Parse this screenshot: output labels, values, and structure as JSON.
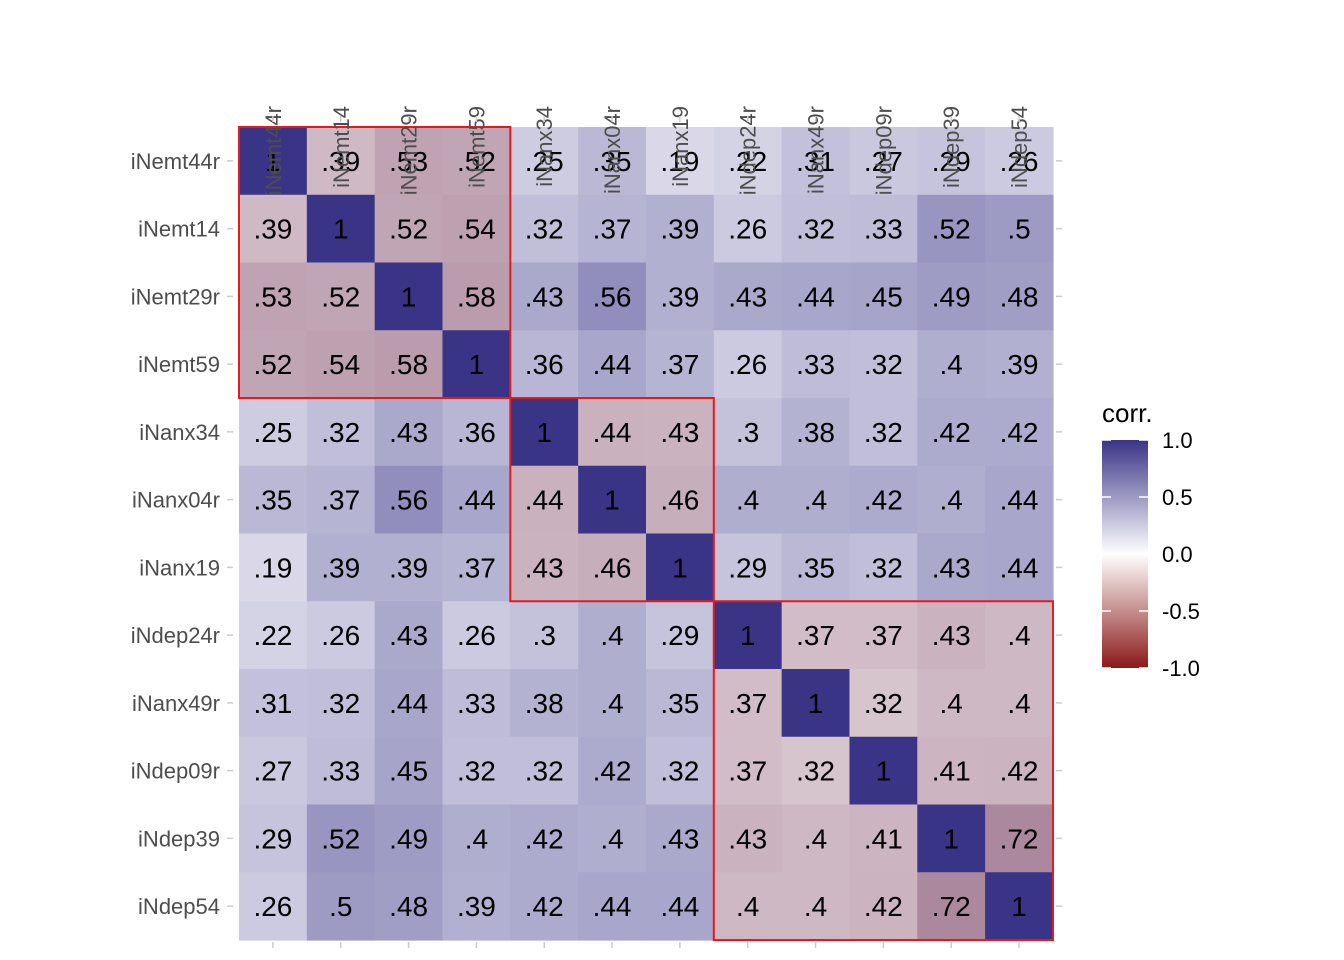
{
  "chart_data": {
    "type": "heatmap",
    "title": "",
    "xlabel": "",
    "ylabel": "",
    "variables": [
      "iNemt44r",
      "iNemt14",
      "iNemt29r",
      "iNemt59",
      "iNanx34",
      "iNanx04r",
      "iNanx19",
      "iNdep24r",
      "iNanx49r",
      "iNdep09r",
      "iNdep39",
      "iNdep54"
    ],
    "values": [
      [
        1,
        0.39,
        0.53,
        0.52,
        0.25,
        0.35,
        0.19,
        0.22,
        0.31,
        0.27,
        0.29,
        0.26
      ],
      [
        0.39,
        1,
        0.52,
        0.54,
        0.32,
        0.37,
        0.39,
        0.26,
        0.32,
        0.33,
        0.52,
        0.5
      ],
      [
        0.53,
        0.52,
        1,
        0.58,
        0.43,
        0.56,
        0.39,
        0.43,
        0.44,
        0.45,
        0.49,
        0.48
      ],
      [
        0.52,
        0.54,
        0.58,
        1,
        0.36,
        0.44,
        0.37,
        0.26,
        0.33,
        0.32,
        0.4,
        0.39
      ],
      [
        0.25,
        0.32,
        0.43,
        0.36,
        1,
        0.44,
        0.43,
        0.3,
        0.38,
        0.32,
        0.42,
        0.42
      ],
      [
        0.35,
        0.37,
        0.56,
        0.44,
        0.44,
        1,
        0.46,
        0.4,
        0.4,
        0.42,
        0.4,
        0.44
      ],
      [
        0.19,
        0.39,
        0.39,
        0.37,
        0.43,
        0.46,
        1,
        0.29,
        0.35,
        0.32,
        0.43,
        0.44
      ],
      [
        0.22,
        0.26,
        0.43,
        0.26,
        0.3,
        0.4,
        0.29,
        1,
        0.37,
        0.37,
        0.43,
        0.4
      ],
      [
        0.31,
        0.32,
        0.44,
        0.33,
        0.38,
        0.4,
        0.35,
        0.37,
        1,
        0.32,
        0.4,
        0.4
      ],
      [
        0.27,
        0.33,
        0.45,
        0.32,
        0.32,
        0.42,
        0.32,
        0.37,
        0.32,
        1,
        0.41,
        0.42
      ],
      [
        0.29,
        0.52,
        0.49,
        0.4,
        0.42,
        0.4,
        0.43,
        0.43,
        0.4,
        0.41,
        1,
        0.72
      ],
      [
        0.26,
        0.5,
        0.48,
        0.39,
        0.42,
        0.44,
        0.44,
        0.4,
        0.4,
        0.42,
        0.72,
        1
      ]
    ],
    "labels": [
      [
        "1",
        ".39",
        ".53",
        ".52",
        ".25",
        ".35",
        ".19",
        ".22",
        ".31",
        ".27",
        ".29",
        ".26"
      ],
      [
        ".39",
        "1",
        ".52",
        ".54",
        ".32",
        ".37",
        ".39",
        ".26",
        ".32",
        ".33",
        ".52",
        ".5"
      ],
      [
        ".53",
        ".52",
        "1",
        ".58",
        ".43",
        ".56",
        ".39",
        ".43",
        ".44",
        ".45",
        ".49",
        ".48"
      ],
      [
        ".52",
        ".54",
        ".58",
        "1",
        ".36",
        ".44",
        ".37",
        ".26",
        ".33",
        ".32",
        ".4",
        ".39"
      ],
      [
        ".25",
        ".32",
        ".43",
        ".36",
        "1",
        ".44",
        ".43",
        ".3",
        ".38",
        ".32",
        ".42",
        ".42"
      ],
      [
        ".35",
        ".37",
        ".56",
        ".44",
        ".44",
        "1",
        ".46",
        ".4",
        ".4",
        ".42",
        ".4",
        ".44"
      ],
      [
        ".19",
        ".39",
        ".39",
        ".37",
        ".43",
        ".46",
        "1",
        ".29",
        ".35",
        ".32",
        ".43",
        ".44"
      ],
      [
        ".22",
        ".26",
        ".43",
        ".26",
        ".3",
        ".4",
        ".29",
        "1",
        ".37",
        ".37",
        ".43",
        ".4"
      ],
      [
        ".31",
        ".32",
        ".44",
        ".33",
        ".38",
        ".4",
        ".35",
        ".37",
        "1",
        ".32",
        ".4",
        ".4"
      ],
      [
        ".27",
        ".33",
        ".45",
        ".32",
        ".32",
        ".42",
        ".32",
        ".37",
        ".32",
        "1",
        ".41",
        ".42"
      ],
      [
        ".29",
        ".52",
        ".49",
        ".4",
        ".42",
        ".4",
        ".43",
        ".43",
        ".4",
        ".41",
        "1",
        ".72"
      ],
      [
        ".26",
        ".5",
        ".48",
        ".39",
        ".42",
        ".44",
        ".44",
        ".4",
        ".4",
        ".42",
        ".72",
        "1"
      ]
    ],
    "blocks": [
      {
        "start": 0,
        "end": 3,
        "diagonal_style": "red-tint"
      },
      {
        "start": 4,
        "end": 6,
        "diagonal_style": "red-tint"
      },
      {
        "start": 7,
        "end": 11,
        "diagonal_style": "red-tint"
      }
    ],
    "block_outline_color": "#e41a1c",
    "color_scale": {
      "low": "#8b1a1a",
      "mid": "#ffffff",
      "high": "#3a3487",
      "domain": [
        -1,
        1
      ]
    },
    "legend": {
      "title": "corr.",
      "ticks": [
        "1.0",
        "0.5",
        "0.0",
        "-0.5",
        "-1.0"
      ],
      "tick_values": [
        1,
        0.5,
        0,
        -0.5,
        -1
      ],
      "placement": "right"
    },
    "grid": false
  }
}
